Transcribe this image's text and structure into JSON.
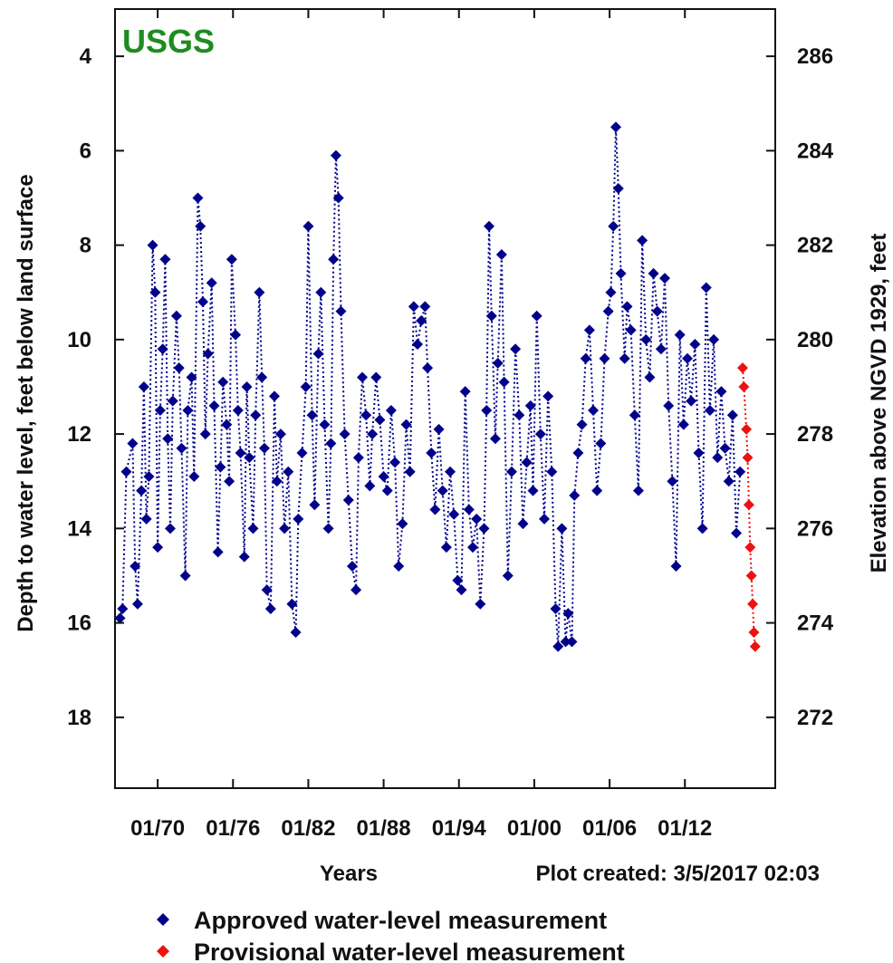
{
  "logo": "USGS",
  "plot_created": "Plot created: 3/5/2017 02:03",
  "chart_data": {
    "type": "scatter",
    "title": "",
    "xlabel": "Years",
    "ylabel": "Depth to water level, feet below land surface",
    "y2label": "Elevation above NGVD 1929, feet",
    "y_inverted": true,
    "xlim": [
      1966.6,
      2019.2
    ],
    "ylim": [
      3.0,
      19.5
    ],
    "y2lim": [
      287.0,
      270.5
    ],
    "x_ticks": [
      1970,
      1976,
      1982,
      1988,
      1994,
      2000,
      2006,
      2012
    ],
    "x_tick_labels": [
      "01/70",
      "01/76",
      "01/82",
      "01/88",
      "01/94",
      "01/00",
      "01/06",
      "01/12"
    ],
    "y_ticks": [
      4,
      6,
      8,
      10,
      12,
      14,
      16,
      18
    ],
    "y_tick_labels": [
      "4",
      "6",
      "8",
      "10",
      "12",
      "14",
      "16",
      "18"
    ],
    "y2_ticks": [
      286,
      284,
      282,
      280,
      278,
      276,
      274,
      272
    ],
    "y2_tick_labels": [
      "286",
      "284",
      "282",
      "280",
      "278",
      "276",
      "274",
      "272"
    ],
    "legend_position": "bottom",
    "grid": false,
    "series": [
      {
        "name": "Approved water-level measurement",
        "color": "#00008b",
        "marker": "diamond",
        "line": "dotted",
        "points": [
          [
            1967.0,
            15.9
          ],
          [
            1967.2,
            15.7
          ],
          [
            1967.5,
            12.8
          ],
          [
            1968.0,
            12.2
          ],
          [
            1968.2,
            14.8
          ],
          [
            1968.4,
            15.6
          ],
          [
            1968.7,
            13.2
          ],
          [
            1968.9,
            11.0
          ],
          [
            1969.1,
            13.8
          ],
          [
            1969.3,
            12.9
          ],
          [
            1969.6,
            8.0
          ],
          [
            1969.8,
            9.0
          ],
          [
            1970.0,
            14.4
          ],
          [
            1970.2,
            11.5
          ],
          [
            1970.4,
            10.2
          ],
          [
            1970.6,
            8.3
          ],
          [
            1970.8,
            12.1
          ],
          [
            1971.0,
            14.0
          ],
          [
            1971.2,
            11.3
          ],
          [
            1971.5,
            9.5
          ],
          [
            1971.7,
            10.6
          ],
          [
            1971.9,
            12.3
          ],
          [
            1972.2,
            15.0
          ],
          [
            1972.4,
            11.5
          ],
          [
            1972.7,
            10.8
          ],
          [
            1972.9,
            12.9
          ],
          [
            1973.2,
            7.0
          ],
          [
            1973.4,
            7.6
          ],
          [
            1973.6,
            9.2
          ],
          [
            1973.8,
            12.0
          ],
          [
            1974.0,
            10.3
          ],
          [
            1974.3,
            8.8
          ],
          [
            1974.5,
            11.4
          ],
          [
            1974.8,
            14.5
          ],
          [
            1975.0,
            12.7
          ],
          [
            1975.2,
            10.9
          ],
          [
            1975.5,
            11.8
          ],
          [
            1975.7,
            13.0
          ],
          [
            1975.9,
            8.3
          ],
          [
            1976.2,
            9.9
          ],
          [
            1976.4,
            11.5
          ],
          [
            1976.6,
            12.4
          ],
          [
            1976.9,
            14.6
          ],
          [
            1977.1,
            11.0
          ],
          [
            1977.3,
            12.5
          ],
          [
            1977.6,
            14.0
          ],
          [
            1977.8,
            11.6
          ],
          [
            1978.1,
            9.0
          ],
          [
            1978.3,
            10.8
          ],
          [
            1978.5,
            12.3
          ],
          [
            1978.7,
            15.3
          ],
          [
            1979.0,
            15.7
          ],
          [
            1979.3,
            11.2
          ],
          [
            1979.5,
            13.0
          ],
          [
            1979.8,
            12.0
          ],
          [
            1980.1,
            14.0
          ],
          [
            1980.4,
            12.8
          ],
          [
            1980.7,
            15.6
          ],
          [
            1981.0,
            16.2
          ],
          [
            1981.2,
            13.8
          ],
          [
            1981.5,
            12.4
          ],
          [
            1981.8,
            11.0
          ],
          [
            1982.0,
            7.6
          ],
          [
            1982.3,
            11.6
          ],
          [
            1982.5,
            13.5
          ],
          [
            1982.8,
            10.3
          ],
          [
            1983.0,
            9.0
          ],
          [
            1983.3,
            11.8
          ],
          [
            1983.6,
            14.0
          ],
          [
            1983.8,
            12.2
          ],
          [
            1984.0,
            8.3
          ],
          [
            1984.2,
            6.1
          ],
          [
            1984.4,
            7.0
          ],
          [
            1984.6,
            9.4
          ],
          [
            1984.9,
            12.0
          ],
          [
            1985.2,
            13.4
          ],
          [
            1985.5,
            14.8
          ],
          [
            1985.8,
            15.3
          ],
          [
            1986.0,
            12.5
          ],
          [
            1986.3,
            10.8
          ],
          [
            1986.6,
            11.6
          ],
          [
            1986.9,
            13.1
          ],
          [
            1987.1,
            12.0
          ],
          [
            1987.4,
            10.8
          ],
          [
            1987.7,
            11.7
          ],
          [
            1988.0,
            12.9
          ],
          [
            1988.3,
            13.2
          ],
          [
            1988.6,
            11.5
          ],
          [
            1988.9,
            12.6
          ],
          [
            1989.2,
            14.8
          ],
          [
            1989.5,
            13.9
          ],
          [
            1989.8,
            11.8
          ],
          [
            1990.1,
            12.8
          ],
          [
            1990.4,
            9.3
          ],
          [
            1990.7,
            10.1
          ],
          [
            1991.0,
            9.6
          ],
          [
            1991.3,
            9.3
          ],
          [
            1991.5,
            10.6
          ],
          [
            1991.8,
            12.4
          ],
          [
            1992.1,
            13.6
          ],
          [
            1992.4,
            11.9
          ],
          [
            1992.7,
            13.2
          ],
          [
            1993.0,
            14.4
          ],
          [
            1993.3,
            12.8
          ],
          [
            1993.6,
            13.7
          ],
          [
            1993.9,
            15.1
          ],
          [
            1994.2,
            15.3
          ],
          [
            1994.5,
            11.1
          ],
          [
            1994.8,
            13.6
          ],
          [
            1995.1,
            14.4
          ],
          [
            1995.4,
            13.8
          ],
          [
            1995.7,
            15.6
          ],
          [
            1996.0,
            14.0
          ],
          [
            1996.2,
            11.5
          ],
          [
            1996.4,
            7.6
          ],
          [
            1996.6,
            9.5
          ],
          [
            1996.9,
            12.1
          ],
          [
            1997.1,
            10.5
          ],
          [
            1997.4,
            8.2
          ],
          [
            1997.6,
            10.9
          ],
          [
            1997.9,
            15.0
          ],
          [
            1998.2,
            12.8
          ],
          [
            1998.5,
            10.2
          ],
          [
            1998.8,
            11.6
          ],
          [
            1999.1,
            13.9
          ],
          [
            1999.4,
            12.6
          ],
          [
            1999.7,
            11.4
          ],
          [
            1999.9,
            13.2
          ],
          [
            2000.2,
            9.5
          ],
          [
            2000.5,
            12.0
          ],
          [
            2000.8,
            13.8
          ],
          [
            2001.1,
            11.2
          ],
          [
            2001.4,
            12.8
          ],
          [
            2001.7,
            15.7
          ],
          [
            2001.9,
            16.5
          ],
          [
            2002.2,
            14.0
          ],
          [
            2002.5,
            16.4
          ],
          [
            2002.7,
            15.8
          ],
          [
            2003.0,
            16.4
          ],
          [
            2003.2,
            13.3
          ],
          [
            2003.5,
            12.4
          ],
          [
            2003.8,
            11.8
          ],
          [
            2004.1,
            10.4
          ],
          [
            2004.4,
            9.8
          ],
          [
            2004.7,
            11.5
          ],
          [
            2005.0,
            13.2
          ],
          [
            2005.3,
            12.2
          ],
          [
            2005.6,
            10.4
          ],
          [
            2005.9,
            9.4
          ],
          [
            2006.1,
            9.0
          ],
          [
            2006.3,
            7.6
          ],
          [
            2006.5,
            5.5
          ],
          [
            2006.7,
            6.8
          ],
          [
            2006.9,
            8.6
          ],
          [
            2007.2,
            10.4
          ],
          [
            2007.4,
            9.3
          ],
          [
            2007.7,
            9.8
          ],
          [
            2008.0,
            11.6
          ],
          [
            2008.3,
            13.2
          ],
          [
            2008.6,
            7.9
          ],
          [
            2008.9,
            10.0
          ],
          [
            2009.2,
            10.8
          ],
          [
            2009.5,
            8.6
          ],
          [
            2009.8,
            9.4
          ],
          [
            2010.1,
            10.2
          ],
          [
            2010.4,
            8.7
          ],
          [
            2010.7,
            11.4
          ],
          [
            2011.0,
            13.0
          ],
          [
            2011.3,
            14.8
          ],
          [
            2011.6,
            9.9
          ],
          [
            2011.9,
            11.8
          ],
          [
            2012.2,
            10.4
          ],
          [
            2012.5,
            11.3
          ],
          [
            2012.8,
            10.1
          ],
          [
            2013.1,
            12.4
          ],
          [
            2013.4,
            14.0
          ],
          [
            2013.7,
            8.9
          ],
          [
            2014.0,
            11.5
          ],
          [
            2014.3,
            10.0
          ],
          [
            2014.6,
            12.5
          ],
          [
            2014.9,
            11.1
          ],
          [
            2015.2,
            12.3
          ],
          [
            2015.5,
            13.0
          ],
          [
            2015.8,
            11.6
          ],
          [
            2016.1,
            14.1
          ],
          [
            2016.4,
            12.8
          ]
        ]
      },
      {
        "name": "Provisional water-level measurement",
        "color": "#ee1111",
        "marker": "diamond",
        "line": "dotted",
        "points": [
          [
            2016.6,
            10.6
          ],
          [
            2016.7,
            11.0
          ],
          [
            2016.9,
            11.9
          ],
          [
            2017.0,
            12.5
          ],
          [
            2017.1,
            13.5
          ],
          [
            2017.2,
            14.4
          ],
          [
            2017.3,
            15.0
          ],
          [
            2017.4,
            15.6
          ],
          [
            2017.5,
            16.2
          ],
          [
            2017.6,
            16.5
          ]
        ]
      }
    ]
  }
}
